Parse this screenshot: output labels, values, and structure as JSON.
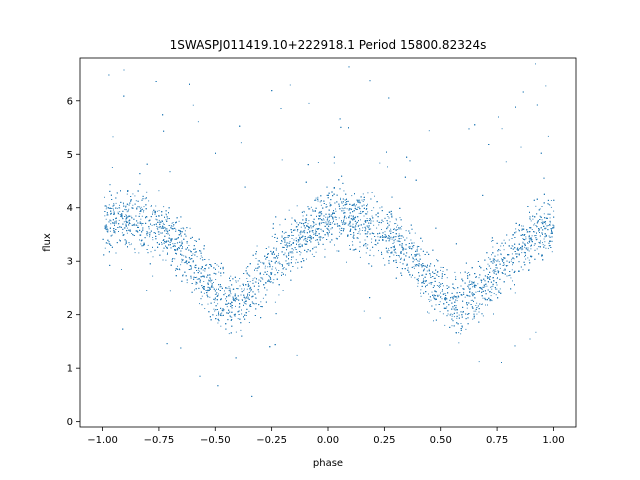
{
  "chart_data": {
    "type": "scatter",
    "title": "1SWASPJ011419.10+222918.1 Period 15800.82324s",
    "xlabel": "phase",
    "ylabel": "flux",
    "xlim": [
      -1.1,
      1.1
    ],
    "ylim": [
      -0.1,
      6.8
    ],
    "xticks": [
      -1.0,
      -0.75,
      -0.5,
      -0.25,
      0.0,
      0.25,
      0.5,
      0.75,
      1.0
    ],
    "xtick_labels": [
      "−1.00",
      "−0.75",
      "−0.50",
      "−0.25",
      "0.00",
      "0.25",
      "0.50",
      "0.75",
      "1.00"
    ],
    "yticks": [
      0,
      1,
      2,
      3,
      4,
      5,
      6
    ],
    "ytick_labels": [
      "0",
      "1",
      "2",
      "3",
      "4",
      "5",
      "6"
    ],
    "grid": false,
    "marker_color": "#1f77b4",
    "series": [
      {
        "x": [
          -1.0,
          -0.9,
          -0.8,
          -0.7,
          -0.6,
          -0.5,
          -0.42,
          -0.35,
          -0.25,
          -0.15,
          -0.05,
          0.05,
          0.15,
          0.25,
          0.35,
          0.45,
          0.58,
          0.7,
          0.8,
          0.9,
          1.0
        ],
        "values": [
          3.7,
          3.8,
          3.7,
          3.5,
          3.0,
          2.4,
          2.2,
          2.4,
          3.0,
          3.4,
          3.7,
          3.85,
          3.75,
          3.55,
          3.2,
          2.6,
          2.2,
          2.6,
          3.1,
          3.5,
          3.7
        ]
      }
    ]
  }
}
